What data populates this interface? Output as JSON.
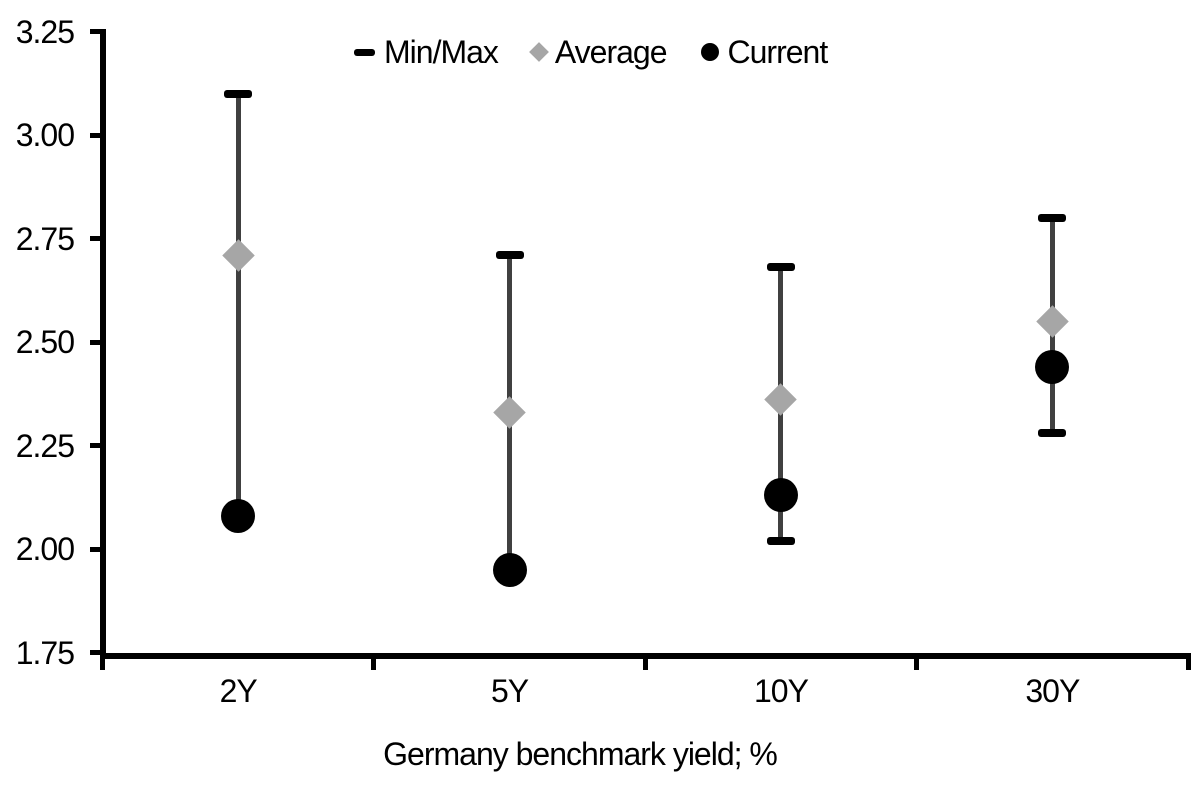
{
  "chart_data": {
    "type": "scatter",
    "subtype": "min-max-range-with-points",
    "title": "",
    "xlabel": "Germany benchmark yield; %",
    "ylabel": "",
    "categories": [
      "2Y",
      "5Y",
      "10Y",
      "30Y"
    ],
    "ylim": [
      1.75,
      3.25
    ],
    "ytick_step": 0.25,
    "yticks": [
      "3.25",
      "3.00",
      "2.75",
      "2.50",
      "2.25",
      "2.00",
      "1.75"
    ],
    "grid": false,
    "legend_position": "top-center",
    "legend": [
      {
        "label": "Min/Max",
        "marker": "dash-icon",
        "color": "#000000"
      },
      {
        "label": "Average",
        "marker": "diamond-icon",
        "color": "#a6a6a6"
      },
      {
        "label": "Current",
        "marker": "circle-icon",
        "color": "#000000"
      }
    ],
    "series": [
      {
        "name": "Min/Max",
        "role": "range",
        "max": [
          3.1,
          2.71,
          2.68,
          2.8
        ],
        "min": [
          2.08,
          1.95,
          2.02,
          2.28
        ]
      },
      {
        "name": "Average",
        "role": "point-diamond",
        "values": [
          2.71,
          2.33,
          2.36,
          2.55
        ]
      },
      {
        "name": "Current",
        "role": "point-circle",
        "values": [
          2.08,
          1.95,
          2.13,
          2.44
        ]
      }
    ],
    "colors": {
      "minmax_cap": "#000000",
      "range_line": "#404040",
      "average": "#a6a6a6",
      "current": "#000000",
      "axis": "#000000",
      "text": "#000000",
      "background": "#ffffff"
    }
  }
}
